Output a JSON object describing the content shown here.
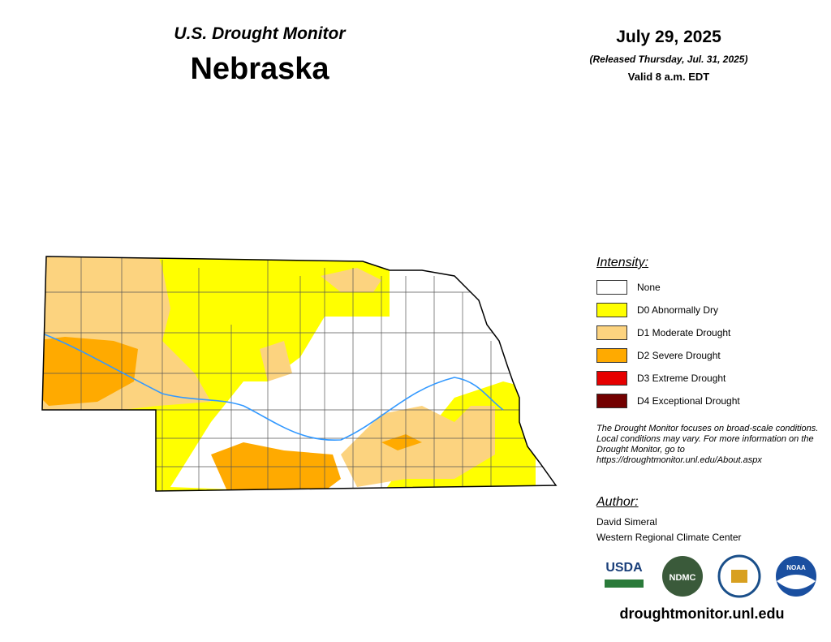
{
  "header": {
    "subtitle": "U.S. Drought Monitor",
    "title": "Nebraska",
    "date": "July 29, 2025",
    "released": "(Released Thursday, Jul. 31, 2025)",
    "valid": "Valid 8 a.m. EDT"
  },
  "legend": {
    "heading": "Intensity:",
    "items": [
      {
        "label": "None",
        "color": "#ffffff"
      },
      {
        "label": "D0 Abnormally Dry",
        "color": "#ffff00"
      },
      {
        "label": "D1 Moderate Drought",
        "color": "#fcd37f"
      },
      {
        "label": "D2 Severe Drought",
        "color": "#ffaa00"
      },
      {
        "label": "D3 Extreme Drought",
        "color": "#e60000"
      },
      {
        "label": "D4 Exceptional Drought",
        "color": "#730000"
      }
    ]
  },
  "note": "The Drought Monitor focuses on broad-scale conditions. Local conditions may vary. For more information on the Drought Monitor, go to https://droughtmonitor.unl.edu/About.aspx",
  "author": {
    "heading": "Author:",
    "name": "David Simeral",
    "org": "Western Regional Climate Center"
  },
  "logos": [
    "USDA",
    "NDMC",
    "NOAA"
  ],
  "footer": {
    "url": "droughtmonitor.unl.edu"
  }
}
